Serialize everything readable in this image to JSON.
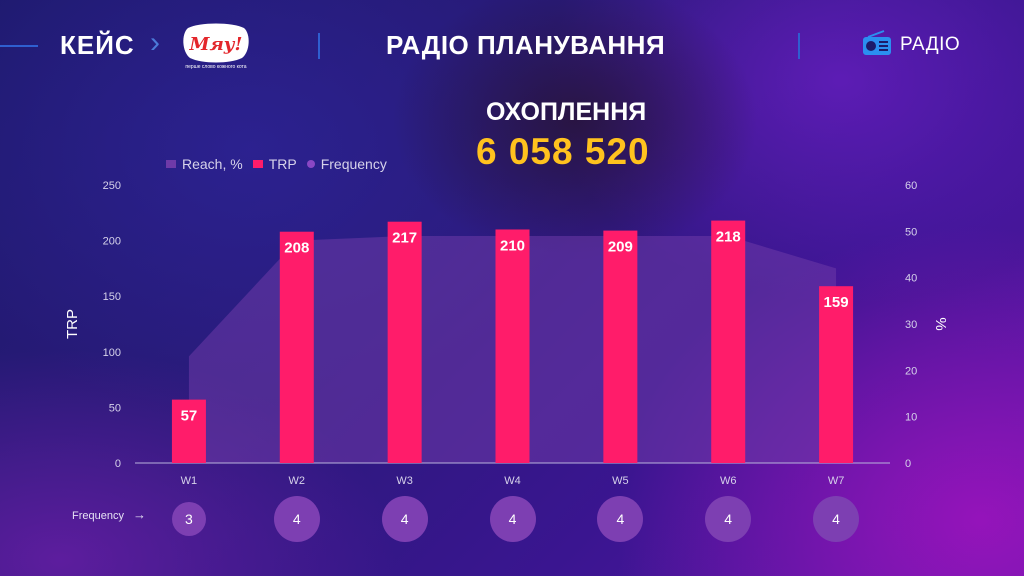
{
  "header": {
    "case_label": "КЕЙС",
    "logo_text": "Мяу!",
    "logo_tagline": "перше слово кожного кота",
    "title": "РАДІО ПЛАНУВАННЯ",
    "media_label": "РАДІО"
  },
  "reach": {
    "label": "ОХОПЛЕННЯ",
    "value": "6 058 520"
  },
  "legend": {
    "reach": "Reach, %",
    "trp": "TRP",
    "frequency": "Frequency"
  },
  "frequency_row_label": "Frequency",
  "colors": {
    "trp": "#ff1c6a",
    "reach": "#6e3aa8",
    "frequency": "#7d3fb2",
    "highlight": "#ffc21e"
  },
  "chart_data": {
    "type": "bar",
    "categories": [
      "W1",
      "W2",
      "W3",
      "W4",
      "W5",
      "W6",
      "W7"
    ],
    "series": [
      {
        "name": "TRP",
        "type": "bar",
        "axis": "left",
        "values": [
          57,
          208,
          217,
          210,
          209,
          218,
          159
        ]
      },
      {
        "name": "Reach, %",
        "type": "area",
        "axis": "right",
        "values": [
          23,
          48,
          49,
          49,
          49,
          49,
          42
        ]
      },
      {
        "name": "Frequency",
        "type": "label",
        "values": [
          3,
          4,
          4,
          4,
          4,
          4,
          4
        ]
      }
    ],
    "ylabel": "TRP",
    "ylim": [
      0,
      250
    ],
    "yticks": [
      0,
      50,
      100,
      150,
      200,
      250
    ],
    "y2label": "%",
    "y2lim": [
      0,
      60
    ],
    "y2ticks": [
      0,
      10,
      20,
      30,
      40,
      50,
      60
    ],
    "legend_position": "top-left",
    "grid": false
  }
}
